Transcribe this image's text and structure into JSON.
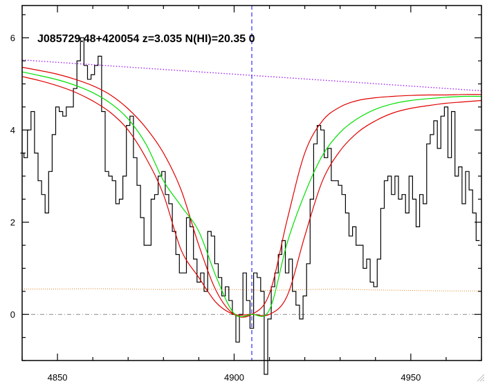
{
  "chart_data": {
    "type": "line",
    "title": "J085729.48+420054 z=3.035 N(HI)=20.35 0",
    "xlabel": "",
    "ylabel": "",
    "xlim": [
      4840,
      4970
    ],
    "ylim": [
      -1.0,
      6.7
    ],
    "grid": false,
    "xticks": [
      4850,
      4900,
      4950
    ],
    "yticks": [
      0,
      2,
      4,
      6
    ],
    "colors": {
      "flux": "#000000",
      "model_best": "#00e000",
      "model_bounds": "#e00000",
      "continuum": "#a020f0",
      "error": "#e08020",
      "center_line": "#0000ff",
      "zero_line": "#888888"
    },
    "center_wavelength": 4905,
    "zero_level": 0,
    "flux": {
      "x": [
        4840,
        4841,
        4842,
        4843,
        4844,
        4845,
        4846,
        4847,
        4848,
        4849,
        4850,
        4851,
        4852,
        4853,
        4854,
        4855,
        4856,
        4857,
        4858,
        4859,
        4860,
        4861,
        4862,
        4863,
        4864,
        4865,
        4866,
        4867,
        4868,
        4869,
        4870,
        4871,
        4872,
        4873,
        4874,
        4875,
        4876,
        4877,
        4878,
        4879,
        4880,
        4881,
        4882,
        4883,
        4884,
        4885,
        4886,
        4887,
        4888,
        4889,
        4890,
        4891,
        4892,
        4893,
        4894,
        4895,
        4896,
        4897,
        4898,
        4899,
        4900,
        4901,
        4902,
        4903,
        4904,
        4905,
        4906,
        4907,
        4908,
        4909,
        4910,
        4911,
        4912,
        4913,
        4914,
        4915,
        4916,
        4917,
        4918,
        4919,
        4920,
        4921,
        4922,
        4923,
        4924,
        4925,
        4926,
        4927,
        4928,
        4929,
        4930,
        4931,
        4932,
        4933,
        4934,
        4935,
        4936,
        4937,
        4938,
        4939,
        4940,
        4941,
        4942,
        4943,
        4944,
        4945,
        4946,
        4947,
        4948,
        4949,
        4950,
        4951,
        4952,
        4953,
        4954,
        4955,
        4956,
        4957,
        4958,
        4959,
        4960,
        4961,
        4962,
        4963,
        4964,
        4965,
        4966,
        4967,
        4968,
        4969
      ],
      "values": [
        3.5,
        3.4,
        4.0,
        4.4,
        3.5,
        2.9,
        2.6,
        2.2,
        3.1,
        3.9,
        4.5,
        4.4,
        4.3,
        4.5,
        4.5,
        4.9,
        5.5,
        6.0,
        5.4,
        5.1,
        5.2,
        5.4,
        5.6,
        4.4,
        3.1,
        3.0,
        2.9,
        2.4,
        2.5,
        3.0,
        4.1,
        4.3,
        3.4,
        2.8,
        2.1,
        1.5,
        1.5,
        2.5,
        2.6,
        3.0,
        3.1,
        2.6,
        2.4,
        1.8,
        1.3,
        0.9,
        0.9,
        2.1,
        1.9,
        1.2,
        0.7,
        0.9,
        0.5,
        1.8,
        1.7,
        1.1,
        0.8,
        0.4,
        0.6,
        0.3,
        0.0,
        -0.6,
        0.0,
        0.9,
        0.3,
        -0.3,
        0.9,
        0.8,
        0.5,
        -1.3,
        -0.1,
        0.6,
        0.9,
        1.3,
        1.6,
        0.9,
        1.2,
        0.5,
        0.2,
        -0.1,
        0.4,
        1.1,
        2.5,
        3.7,
        4.1,
        4.0,
        3.4,
        3.6,
        2.9,
        2.9,
        2.8,
        2.6,
        2.2,
        1.7,
        1.9,
        1.5,
        1.5,
        1.0,
        1.2,
        0.7,
        0.6,
        1.2,
        2.3,
        2.9,
        3.0,
        2.6,
        3.0,
        2.5,
        2.6,
        2.2,
        3.0,
        2.5,
        1.9,
        2.6,
        2.4,
        3.7,
        3.9,
        4.2,
        3.6,
        4.3,
        4.5,
        3.4,
        4.4,
        3.0,
        3.2,
        2.4,
        3.1,
        2.7,
        2.2,
        1.6
      ]
    },
    "models": {
      "x": [
        4840,
        4845,
        4850,
        4855,
        4860,
        4865,
        4870,
        4875,
        4880,
        4885,
        4890,
        4895,
        4900,
        4905,
        4910,
        4915,
        4920,
        4925,
        4930,
        4935,
        4940,
        4945,
        4950,
        4955,
        4960,
        4965,
        4970
      ],
      "best": [
        5.26,
        5.18,
        5.09,
        4.97,
        4.81,
        4.58,
        4.24,
        3.7,
        2.9,
        2.35,
        1.8,
        0.8,
        0.02,
        0.0,
        0.1,
        1.55,
        2.62,
        3.45,
        3.95,
        4.25,
        4.45,
        4.57,
        4.64,
        4.68,
        4.71,
        4.73,
        4.73
      ],
      "upper": [
        5.36,
        5.29,
        5.21,
        5.1,
        4.96,
        4.76,
        4.46,
        4.05,
        3.5,
        2.7,
        1.5,
        0.5,
        0.0,
        0.0,
        0.45,
        2.05,
        3.5,
        4.2,
        4.5,
        4.64,
        4.7,
        4.73,
        4.75,
        4.76,
        4.76,
        4.77,
        4.77
      ],
      "lower": [
        5.16,
        5.07,
        4.96,
        4.82,
        4.63,
        4.38,
        4.0,
        3.4,
        2.6,
        1.4,
        0.8,
        0.25,
        0.0,
        0.0,
        0.0,
        0.4,
        1.7,
        2.9,
        3.55,
        3.95,
        4.2,
        4.37,
        4.47,
        4.53,
        4.58,
        4.61,
        4.64
      ]
    },
    "continuum": {
      "x": [
        4840,
        4970
      ],
      "values": [
        5.52,
        4.85
      ]
    },
    "error": {
      "x": [
        4840,
        4850,
        4860,
        4870,
        4880,
        4890,
        4900,
        4910,
        4920,
        4930,
        4940,
        4950,
        4960,
        4970
      ],
      "values": [
        0.55,
        0.55,
        0.56,
        0.55,
        0.54,
        0.55,
        0.54,
        0.52,
        0.54,
        0.55,
        0.53,
        0.52,
        0.51,
        0.51
      ]
    }
  }
}
